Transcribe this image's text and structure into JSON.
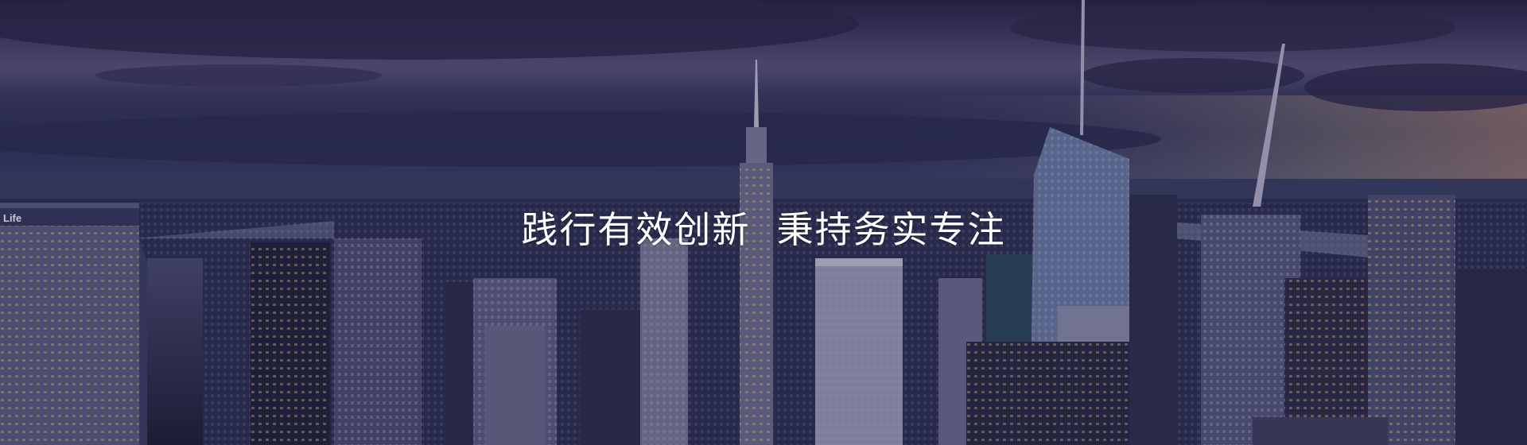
{
  "banner": {
    "slogan": "践行有效创新  秉持务实专注",
    "sign_text": "Life"
  },
  "colors": {
    "sky_top": "#2a2748",
    "horizon_glow": "#c9b487",
    "city_dark": "#1f2238",
    "window_light": "#e7c98a"
  }
}
